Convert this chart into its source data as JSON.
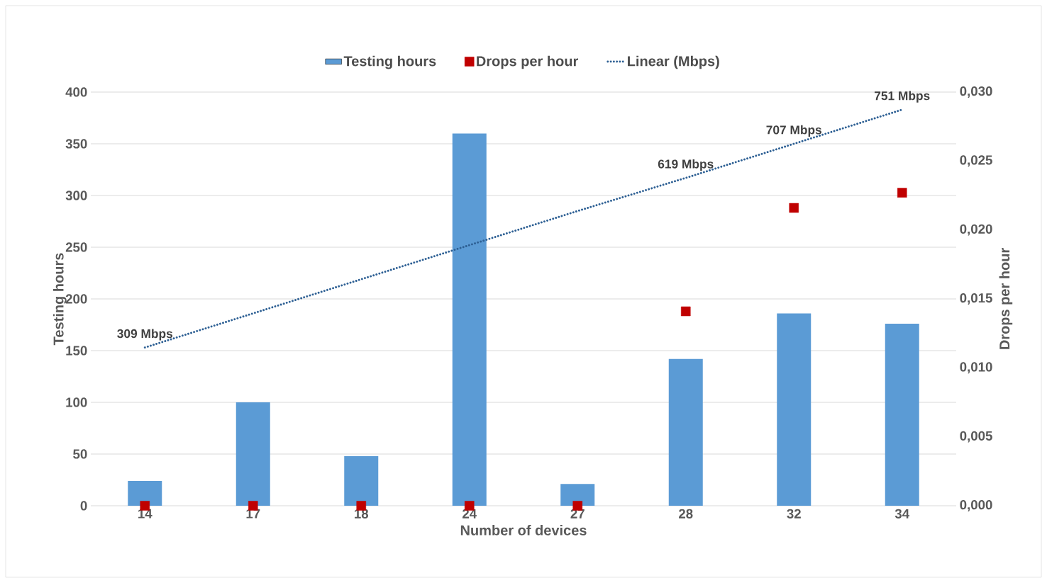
{
  "chart_data": {
    "type": "bar",
    "xlabel": "Number of devices",
    "ylabel": "Testing hours",
    "y2label": "Drops per hour",
    "categories": [
      "14",
      "17",
      "18",
      "24",
      "27",
      "28",
      "32",
      "34"
    ],
    "series": [
      {
        "name": "Testing hours",
        "color": "#5b9bd5",
        "values": [
          24,
          100,
          48,
          360,
          21,
          142,
          186,
          176
        ]
      },
      {
        "name": "Drops per hour",
        "type": "scatter",
        "axis": "y2",
        "marker": "square",
        "color": "#c00000",
        "values": [
          0,
          0,
          0,
          0,
          0,
          0.0141,
          0.0216,
          0.0227
        ]
      },
      {
        "name": "Linear (Mbps)",
        "type": "line",
        "line_style": "dotted",
        "color": "#2e6094",
        "values": [
          153,
          186,
          219,
          252,
          285,
          317,
          350,
          383
        ]
      }
    ],
    "ylim": [
      0,
      400
    ],
    "yticks": [
      0,
      50,
      100,
      150,
      200,
      250,
      300,
      350,
      400
    ],
    "y2lim": [
      0,
      0.03
    ],
    "y2ticks": [
      {
        "value": 0,
        "label": "0,000"
      },
      {
        "value": 0.005,
        "label": "0,005"
      },
      {
        "value": 0.01,
        "label": "0,010"
      },
      {
        "value": 0.015,
        "label": "0,015"
      },
      {
        "value": 0.02,
        "label": "0,020"
      },
      {
        "value": 0.025,
        "label": "0,025"
      },
      {
        "value": 0.03,
        "label": "0,030"
      }
    ],
    "grid": "y",
    "legend": "top",
    "annotations": [
      {
        "text": "309 Mbps",
        "x": "14",
        "y": 153
      },
      {
        "text": "619 Mbps",
        "x": "28",
        "y": 317
      },
      {
        "text": "707 Mbps",
        "x": "32",
        "y": 350
      },
      {
        "text": "751 Mbps",
        "x": "34",
        "y": 383
      }
    ]
  }
}
